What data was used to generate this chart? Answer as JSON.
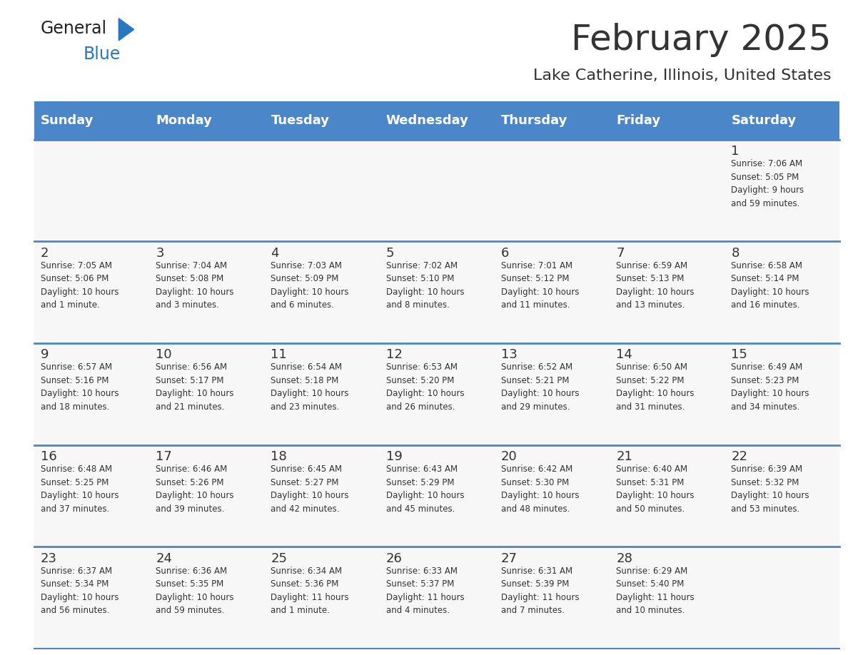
{
  "title": "February 2025",
  "subtitle": "Lake Catherine, Illinois, United States",
  "header_color": "#4a86c8",
  "header_text_color": "#ffffff",
  "separator_color": "#4a86c8",
  "text_color": "#333333",
  "cell_bg_color": "#f7f7f7",
  "days_of_week": [
    "Sunday",
    "Monday",
    "Tuesday",
    "Wednesday",
    "Thursday",
    "Friday",
    "Saturday"
  ],
  "weeks": [
    [
      {
        "day": null,
        "info": null
      },
      {
        "day": null,
        "info": null
      },
      {
        "day": null,
        "info": null
      },
      {
        "day": null,
        "info": null
      },
      {
        "day": null,
        "info": null
      },
      {
        "day": null,
        "info": null
      },
      {
        "day": 1,
        "info": "Sunrise: 7:06 AM\nSunset: 5:05 PM\nDaylight: 9 hours\nand 59 minutes."
      }
    ],
    [
      {
        "day": 2,
        "info": "Sunrise: 7:05 AM\nSunset: 5:06 PM\nDaylight: 10 hours\nand 1 minute."
      },
      {
        "day": 3,
        "info": "Sunrise: 7:04 AM\nSunset: 5:08 PM\nDaylight: 10 hours\nand 3 minutes."
      },
      {
        "day": 4,
        "info": "Sunrise: 7:03 AM\nSunset: 5:09 PM\nDaylight: 10 hours\nand 6 minutes."
      },
      {
        "day": 5,
        "info": "Sunrise: 7:02 AM\nSunset: 5:10 PM\nDaylight: 10 hours\nand 8 minutes."
      },
      {
        "day": 6,
        "info": "Sunrise: 7:01 AM\nSunset: 5:12 PM\nDaylight: 10 hours\nand 11 minutes."
      },
      {
        "day": 7,
        "info": "Sunrise: 6:59 AM\nSunset: 5:13 PM\nDaylight: 10 hours\nand 13 minutes."
      },
      {
        "day": 8,
        "info": "Sunrise: 6:58 AM\nSunset: 5:14 PM\nDaylight: 10 hours\nand 16 minutes."
      }
    ],
    [
      {
        "day": 9,
        "info": "Sunrise: 6:57 AM\nSunset: 5:16 PM\nDaylight: 10 hours\nand 18 minutes."
      },
      {
        "day": 10,
        "info": "Sunrise: 6:56 AM\nSunset: 5:17 PM\nDaylight: 10 hours\nand 21 minutes."
      },
      {
        "day": 11,
        "info": "Sunrise: 6:54 AM\nSunset: 5:18 PM\nDaylight: 10 hours\nand 23 minutes."
      },
      {
        "day": 12,
        "info": "Sunrise: 6:53 AM\nSunset: 5:20 PM\nDaylight: 10 hours\nand 26 minutes."
      },
      {
        "day": 13,
        "info": "Sunrise: 6:52 AM\nSunset: 5:21 PM\nDaylight: 10 hours\nand 29 minutes."
      },
      {
        "day": 14,
        "info": "Sunrise: 6:50 AM\nSunset: 5:22 PM\nDaylight: 10 hours\nand 31 minutes."
      },
      {
        "day": 15,
        "info": "Sunrise: 6:49 AM\nSunset: 5:23 PM\nDaylight: 10 hours\nand 34 minutes."
      }
    ],
    [
      {
        "day": 16,
        "info": "Sunrise: 6:48 AM\nSunset: 5:25 PM\nDaylight: 10 hours\nand 37 minutes."
      },
      {
        "day": 17,
        "info": "Sunrise: 6:46 AM\nSunset: 5:26 PM\nDaylight: 10 hours\nand 39 minutes."
      },
      {
        "day": 18,
        "info": "Sunrise: 6:45 AM\nSunset: 5:27 PM\nDaylight: 10 hours\nand 42 minutes."
      },
      {
        "day": 19,
        "info": "Sunrise: 6:43 AM\nSunset: 5:29 PM\nDaylight: 10 hours\nand 45 minutes."
      },
      {
        "day": 20,
        "info": "Sunrise: 6:42 AM\nSunset: 5:30 PM\nDaylight: 10 hours\nand 48 minutes."
      },
      {
        "day": 21,
        "info": "Sunrise: 6:40 AM\nSunset: 5:31 PM\nDaylight: 10 hours\nand 50 minutes."
      },
      {
        "day": 22,
        "info": "Sunrise: 6:39 AM\nSunset: 5:32 PM\nDaylight: 10 hours\nand 53 minutes."
      }
    ],
    [
      {
        "day": 23,
        "info": "Sunrise: 6:37 AM\nSunset: 5:34 PM\nDaylight: 10 hours\nand 56 minutes."
      },
      {
        "day": 24,
        "info": "Sunrise: 6:36 AM\nSunset: 5:35 PM\nDaylight: 10 hours\nand 59 minutes."
      },
      {
        "day": 25,
        "info": "Sunrise: 6:34 AM\nSunset: 5:36 PM\nDaylight: 11 hours\nand 1 minute."
      },
      {
        "day": 26,
        "info": "Sunrise: 6:33 AM\nSunset: 5:37 PM\nDaylight: 11 hours\nand 4 minutes."
      },
      {
        "day": 27,
        "info": "Sunrise: 6:31 AM\nSunset: 5:39 PM\nDaylight: 11 hours\nand 7 minutes."
      },
      {
        "day": 28,
        "info": "Sunrise: 6:29 AM\nSunset: 5:40 PM\nDaylight: 11 hours\nand 10 minutes."
      },
      {
        "day": null,
        "info": null
      }
    ]
  ]
}
